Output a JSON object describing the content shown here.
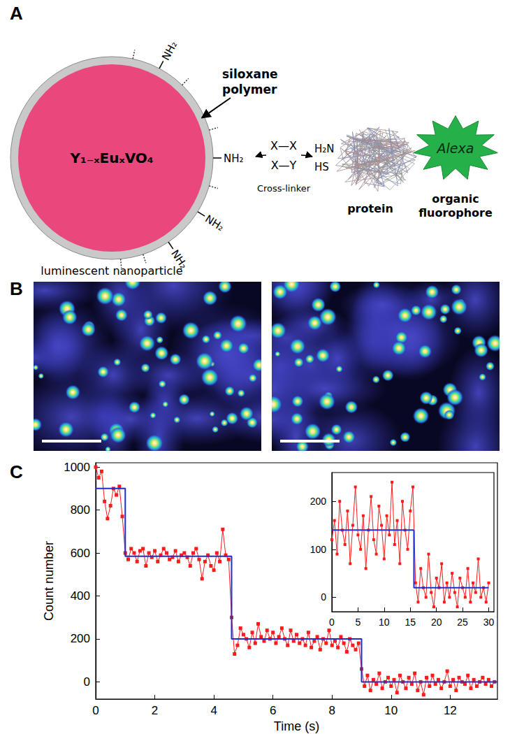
{
  "figure": {
    "panel_labels": [
      "A",
      "B",
      "C"
    ],
    "diagram": {
      "core": "Y₁₋ₓEuₓVO₄",
      "shell_label": [
        "siloxane",
        "polymer"
      ],
      "surface_groups": [
        "NH₂",
        "NH₂",
        "NH₂",
        "NH₂"
      ],
      "particle_label": "luminescent nanoparticle",
      "crosslinker": [
        "X—X",
        "X—Y"
      ],
      "crosslinker_label": "Cross-linker",
      "reactive_groups": [
        "H₂N",
        "HS"
      ],
      "protein_label": "protein",
      "fluorophore": "Alexa",
      "fluorophore_label": [
        "organic",
        "fluorophore"
      ]
    }
  },
  "chart_data": [
    {
      "type": "line",
      "xlabel": "Time (s)",
      "ylabel": "Count number",
      "xlim": [
        0,
        13.6
      ],
      "xticks": [
        0,
        2,
        4,
        6,
        8,
        10,
        12
      ],
      "ylim": [
        -80,
        1020
      ],
      "yticks": [
        0,
        200,
        400,
        600,
        800,
        1000
      ],
      "grid": false,
      "series": [
        {
          "color": "#ff1a1a",
          "marker": "square",
          "line_style": "solid",
          "x": [
            0,
            0.1,
            0.2,
            0.3,
            0.4,
            0.5,
            0.6,
            0.7,
            0.8,
            0.9,
            1,
            1.1,
            1.2,
            1.3,
            1.4,
            1.5,
            1.6,
            1.7,
            1.8,
            1.9,
            2,
            2.1,
            2.2,
            2.3,
            2.4,
            2.5,
            2.6,
            2.7,
            2.8,
            2.9,
            3,
            3.1,
            3.2,
            3.3,
            3.4,
            3.5,
            3.6,
            3.7,
            3.8,
            3.9,
            4,
            4.1,
            4.2,
            4.3,
            4.4,
            4.5,
            4.6,
            4.7,
            4.8,
            4.9,
            5,
            5.1,
            5.2,
            5.3,
            5.4,
            5.5,
            5.6,
            5.7,
            5.8,
            5.9,
            6,
            6.1,
            6.2,
            6.3,
            6.4,
            6.5,
            6.6,
            6.7,
            6.8,
            6.9,
            7,
            7.1,
            7.2,
            7.3,
            7.4,
            7.5,
            7.6,
            7.7,
            7.8,
            7.9,
            8,
            8.1,
            8.2,
            8.3,
            8.4,
            8.5,
            8.6,
            8.7,
            8.8,
            8.9,
            9,
            9.1,
            9.2,
            9.3,
            9.4,
            9.5,
            9.6,
            9.7,
            9.8,
            9.9,
            10,
            10.1,
            10.2,
            10.3,
            10.4,
            10.5,
            10.6,
            10.7,
            10.8,
            10.9,
            11,
            11.1,
            11.2,
            11.3,
            11.4,
            11.5,
            11.6,
            11.7,
            11.8,
            11.9,
            12,
            12.1,
            12.2,
            12.3,
            12.4,
            12.5,
            12.6,
            12.7,
            12.8,
            12.9,
            13,
            13.1,
            13.2,
            13.3,
            13.4,
            13.5
          ],
          "values": [
            1000,
            950,
            980,
            840,
            760,
            820,
            900,
            870,
            910,
            770,
            600,
            570,
            620,
            600,
            560,
            610,
            620,
            540,
            600,
            580,
            610,
            560,
            590,
            620,
            600,
            570,
            580,
            610,
            560,
            590,
            600,
            580,
            540,
            600,
            620,
            570,
            480,
            560,
            590,
            540,
            520,
            600,
            560,
            710,
            590,
            570,
            300,
            130,
            170,
            250,
            220,
            200,
            160,
            230,
            180,
            270,
            210,
            190,
            240,
            200,
            230,
            180,
            210,
            250,
            200,
            170,
            240,
            190,
            220,
            180,
            200,
            170,
            230,
            160,
            190,
            210,
            150,
            200,
            180,
            240,
            170,
            190,
            160,
            210,
            180,
            140,
            200,
            170,
            150,
            180,
            60,
            -20,
            30,
            -40,
            10,
            -10,
            40,
            -30,
            0,
            20,
            -20,
            10,
            -50,
            30,
            0,
            -30,
            20,
            -10,
            40,
            -40,
            0,
            -60,
            20,
            -20,
            30,
            -10,
            10,
            -30,
            0,
            50,
            -20,
            10,
            -40,
            20,
            0,
            -10,
            30,
            -30,
            10,
            -20,
            0,
            20,
            -10,
            10,
            -20,
            0
          ]
        },
        {
          "color": "#1f2fc8",
          "line_style": "steps",
          "x": [
            0,
            1.0,
            4.6,
            9.0,
            13.6
          ],
          "values": [
            900,
            585,
            200,
            0,
            0
          ]
        }
      ]
    },
    {
      "type": "line",
      "xlim": [
        0,
        31
      ],
      "xticks": [
        0,
        5,
        10,
        15,
        20,
        25,
        30
      ],
      "ylim": [
        -30,
        260
      ],
      "yticks": [
        0,
        100,
        200
      ],
      "grid": false,
      "series": [
        {
          "color": "#ff1a1a",
          "marker": "square",
          "line_style": "solid",
          "x": [
            0,
            0.5,
            1,
            1.5,
            2,
            2.5,
            3,
            3.5,
            4,
            4.5,
            5,
            5.5,
            6,
            6.5,
            7,
            7.5,
            8,
            8.5,
            9,
            9.5,
            10,
            10.5,
            11,
            11.5,
            12,
            12.5,
            13,
            13.5,
            14,
            14.5,
            15,
            15.5,
            16,
            16.5,
            17,
            17.5,
            18,
            18.5,
            19,
            19.5,
            20,
            20.5,
            21,
            21.5,
            22,
            22.5,
            23,
            23.5,
            24,
            24.5,
            25,
            25.5,
            26,
            26.5,
            27,
            27.5,
            28,
            28.5,
            29,
            29.5,
            30
          ],
          "values": [
            120,
            160,
            90,
            200,
            140,
            110,
            180,
            70,
            150,
            230,
            130,
            100,
            170,
            60,
            140,
            210,
            120,
            90,
            190,
            150,
            80,
            170,
            130,
            240,
            110,
            160,
            70,
            200,
            140,
            100,
            180,
            230,
            30,
            -10,
            60,
            20,
            0,
            90,
            10,
            -20,
            40,
            20,
            70,
            -10,
            30,
            0,
            50,
            10,
            -20,
            40,
            20,
            0,
            60,
            -10,
            30,
            10,
            80,
            0,
            20,
            -10,
            30
          ]
        },
        {
          "color": "#1f2fc8",
          "line_style": "steps",
          "x": [
            0,
            15.7,
            30
          ],
          "values": [
            140,
            20,
            20
          ]
        }
      ]
    }
  ]
}
